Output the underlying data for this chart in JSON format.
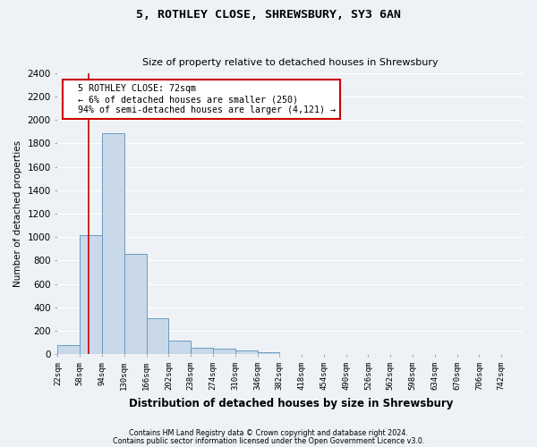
{
  "title": "5, ROTHLEY CLOSE, SHREWSBURY, SY3 6AN",
  "subtitle": "Size of property relative to detached houses in Shrewsbury",
  "xlabel": "Distribution of detached houses by size in Shrewsbury",
  "ylabel": "Number of detached properties",
  "footnote1": "Contains HM Land Registry data © Crown copyright and database right 2024.",
  "footnote2": "Contains public sector information licensed under the Open Government Licence v3.0.",
  "annotation_line1": "  5 ROTHLEY CLOSE: 72sqm",
  "annotation_line2": "  ← 6% of detached houses are smaller (250)",
  "annotation_line3": "  94% of semi-detached houses are larger (4,121) →",
  "bar_color": "#c9d9ea",
  "bar_edge_color": "#6a9bbf",
  "red_line_x": 72,
  "bins_left_edges": [
    22,
    58,
    94,
    130,
    166,
    202,
    238,
    274,
    310,
    346,
    382,
    418,
    454,
    490,
    526,
    562,
    598,
    634,
    670,
    706
  ],
  "bin_width": 36,
  "bar_heights": [
    80,
    1020,
    1890,
    860,
    310,
    115,
    55,
    45,
    30,
    20,
    0,
    0,
    0,
    0,
    0,
    0,
    0,
    0,
    0,
    0
  ],
  "ylim": [
    0,
    2400
  ],
  "yticks": [
    0,
    200,
    400,
    600,
    800,
    1000,
    1200,
    1400,
    1600,
    1800,
    2000,
    2200,
    2400
  ],
  "bg_color": "#eef2f6",
  "grid_color": "#ffffff",
  "annotation_box_color": "#ffffff",
  "annotation_box_edge_color": "#cc0000",
  "tick_labels": [
    "22sqm",
    "58sqm",
    "94sqm",
    "130sqm",
    "166sqm",
    "202sqm",
    "238sqm",
    "274sqm",
    "310sqm",
    "346sqm",
    "382sqm",
    "418sqm",
    "454sqm",
    "490sqm",
    "526sqm",
    "562sqm",
    "598sqm",
    "634sqm",
    "670sqm",
    "706sqm",
    "742sqm"
  ]
}
